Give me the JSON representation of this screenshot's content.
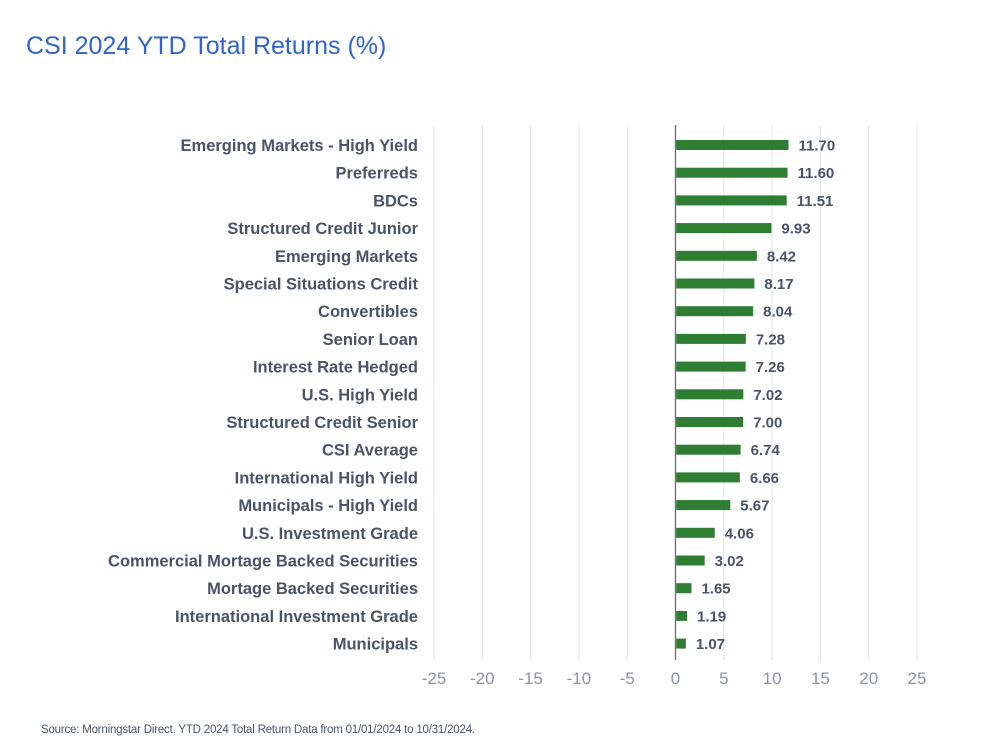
{
  "title": "CSI 2024 YTD Total Returns (%)",
  "source": "Source: Morningstar Direct. YTD 2024 Total Return Data from 01/01/2024 to 10/31/2024.",
  "colors": {
    "title": "#2f63cf",
    "bar": "#2e7d32",
    "label": "#4b5368",
    "tick": "#8a93ad",
    "grid": "#e3e4ea",
    "axis": "#6b6b6b"
  },
  "chart_data": {
    "type": "bar",
    "orientation": "horizontal",
    "title": "CSI 2024 YTD Total Returns (%)",
    "xlabel": "",
    "ylabel": "",
    "xlim": [
      -25,
      25
    ],
    "ticks": [
      "-25",
      "-20",
      "-15",
      "-10",
      "-5",
      "0",
      "5",
      "10",
      "15",
      "20",
      "25"
    ],
    "tick_values": [
      -25,
      -20,
      -15,
      -10,
      -5,
      0,
      5,
      10,
      15,
      20,
      25
    ],
    "grid": true,
    "categories": [
      "Emerging Markets - High Yield",
      "Preferreds",
      "BDCs",
      "Structured Credit Junior",
      "Emerging Markets",
      "Special Situations Credit",
      "Convertibles",
      "Senior Loan",
      "Interest Rate Hedged",
      "U.S. High Yield",
      "Structured Credit Senior",
      "CSI Average",
      "International High Yield",
      "Municipals - High Yield",
      "U.S. Investment Grade",
      "Commercial Mortage Backed Securities",
      "Mortage Backed Securities",
      "International Investment Grade",
      "Municipals"
    ],
    "values": [
      11.7,
      11.6,
      11.51,
      9.93,
      8.42,
      8.17,
      8.04,
      7.28,
      7.26,
      7.02,
      7.0,
      6.74,
      6.66,
      5.67,
      4.06,
      3.02,
      1.65,
      1.19,
      1.07
    ],
    "value_labels": [
      "11.70",
      "11.60",
      "11.51",
      "9.93",
      "8.42",
      "8.17",
      "8.04",
      "7.28",
      "7.26",
      "7.02",
      "7.00",
      "6.74",
      "6.66",
      "5.67",
      "4.06",
      "3.02",
      "1.65",
      "1.19",
      "1.07"
    ]
  }
}
